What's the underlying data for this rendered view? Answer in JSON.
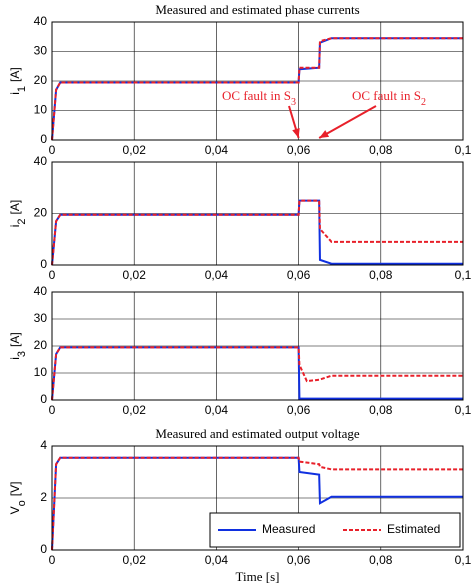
{
  "chart_data": [
    {
      "type": "line",
      "title": "Measured and estimated phase currents",
      "ylabel": [
        "i",
        "1",
        "[A]"
      ],
      "x": [
        0,
        0.001,
        0.002,
        0.06,
        0.0602,
        0.065,
        0.0652,
        0.068,
        0.1
      ],
      "series": [
        {
          "color": "#1030e0",
          "dash": false,
          "values": [
            0,
            17,
            19.5,
            19.5,
            24,
            24.5,
            33,
            34.5,
            34.5
          ]
        },
        {
          "color": "#e8202a",
          "dash": true,
          "values": [
            0,
            17,
            19.5,
            19.5,
            24.5,
            24.5,
            33.5,
            34.5,
            34.5
          ]
        }
      ],
      "xlim": [
        0,
        0.1
      ],
      "xticks": [
        0,
        {
          "value": 0.02,
          "label": "0,02"
        },
        {
          "value": 0.04,
          "label": "0,04"
        },
        {
          "value": 0.06,
          "label": "0,06"
        },
        {
          "value": 0.08,
          "label": "0,08"
        },
        {
          "value": 0.1,
          "label": "0,1"
        }
      ],
      "ylim": [
        0,
        40
      ],
      "yticks": [
        0,
        10,
        20,
        30,
        40
      ],
      "grid": true,
      "annotations": [
        {
          "text": "OC fault in S",
          "sub": "3",
          "x": 0.06,
          "y": 0
        },
        {
          "text": "OC fault in S",
          "sub": "2",
          "x": 0.065,
          "y": 0
        }
      ]
    },
    {
      "type": "line",
      "ylabel": [
        "i",
        "2",
        "[A]"
      ],
      "x": [
        0,
        0.001,
        0.002,
        0.06,
        0.0602,
        0.065,
        0.0652,
        0.068,
        0.1
      ],
      "series": [
        {
          "color": "#1030e0",
          "dash": false,
          "values": [
            0,
            17,
            19.5,
            19.5,
            25,
            25,
            2,
            0.5,
            0.5
          ]
        },
        {
          "color": "#e8202a",
          "dash": true,
          "values": [
            0,
            17,
            19.5,
            19.5,
            25,
            25,
            14,
            9,
            9
          ]
        }
      ],
      "xlim": [
        0,
        0.1
      ],
      "xticks": [
        0,
        {
          "value": 0.02,
          "label": "0,02"
        },
        {
          "value": 0.04,
          "label": "0,04"
        },
        {
          "value": 0.06,
          "label": "0,06"
        },
        {
          "value": 0.08,
          "label": "0,08"
        },
        {
          "value": 0.1,
          "label": "0,1"
        }
      ],
      "ylim": [
        0,
        40
      ],
      "yticks": [
        0,
        20,
        40
      ],
      "grid": true
    },
    {
      "type": "line",
      "ylabel": [
        "i",
        "3",
        "[A]"
      ],
      "x": [
        0,
        0.001,
        0.002,
        0.06,
        0.0602,
        0.062,
        0.065,
        0.068,
        0.1
      ],
      "series": [
        {
          "color": "#1030e0",
          "dash": false,
          "values": [
            0,
            17,
            19.5,
            19.5,
            0.5,
            0.5,
            0.5,
            0.5,
            0.5
          ]
        },
        {
          "color": "#e8202a",
          "dash": true,
          "values": [
            0,
            17,
            19.5,
            19.5,
            13,
            7,
            7.5,
            9,
            9
          ]
        }
      ],
      "xlim": [
        0,
        0.1
      ],
      "xticks": [
        0,
        {
          "value": 0.02,
          "label": "0,02"
        },
        {
          "value": 0.04,
          "label": "0,04"
        },
        {
          "value": 0.06,
          "label": "0,06"
        },
        {
          "value": 0.08,
          "label": "0,08"
        },
        {
          "value": 0.1,
          "label": "0,1"
        }
      ],
      "ylim": [
        0,
        40
      ],
      "yticks": [
        0,
        10,
        20,
        30,
        40
      ],
      "grid": true
    },
    {
      "type": "line",
      "title": "Measured and estimated output voltage",
      "ylabel": [
        "V",
        "o",
        "[V]"
      ],
      "xlabel": "Time [s]",
      "x": [
        0,
        0.001,
        0.002,
        0.06,
        0.0602,
        0.065,
        0.0652,
        0.068,
        0.1
      ],
      "series": [
        {
          "name": "Measured",
          "color": "#1030e0",
          "dash": false,
          "values": [
            0,
            3.3,
            3.55,
            3.55,
            3,
            2.9,
            1.8,
            2.05,
            2.05
          ]
        },
        {
          "name": "Estimated",
          "color": "#e8202a",
          "dash": true,
          "values": [
            0,
            3.3,
            3.55,
            3.55,
            3.4,
            3.3,
            3.2,
            3.1,
            3.1
          ]
        }
      ],
      "xlim": [
        0,
        0.1
      ],
      "xticks": [
        0,
        {
          "value": 0.02,
          "label": "0,02"
        },
        {
          "value": 0.04,
          "label": "0,04"
        },
        {
          "value": 0.06,
          "label": "0,06"
        },
        {
          "value": 0.08,
          "label": "0,08"
        },
        {
          "value": 0.1,
          "label": "0,1"
        }
      ],
      "ylim": [
        0,
        4
      ],
      "yticks": [
        0,
        2,
        4
      ],
      "grid": true,
      "legend": "lower right"
    }
  ]
}
